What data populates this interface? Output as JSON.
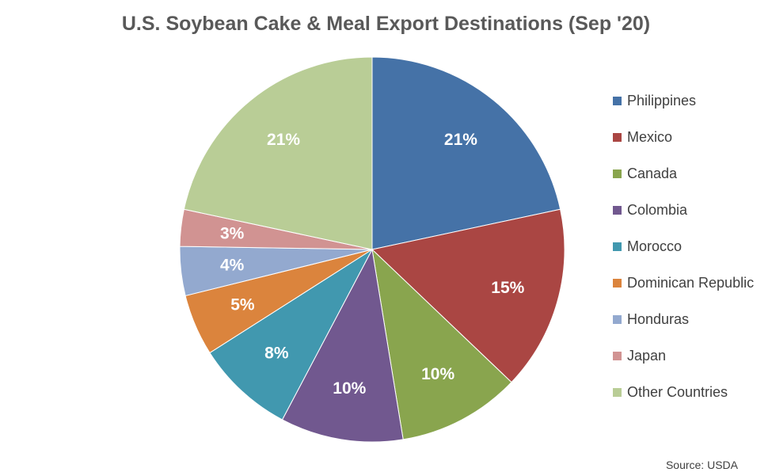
{
  "chart_data": {
    "type": "pie",
    "title": "U.S. Soybean Cake & Meal Export Destinations (Sep '20)",
    "legend_position": "right",
    "slices": [
      {
        "name": "Philippines",
        "value": 21,
        "label": "21%",
        "color": "#4572A7"
      },
      {
        "name": "Mexico",
        "value": 15,
        "label": "15%",
        "color": "#AA4643"
      },
      {
        "name": "Canada",
        "value": 10,
        "label": "10%",
        "color": "#89A54E"
      },
      {
        "name": "Colombia",
        "value": 10,
        "label": "10%",
        "color": "#71588F"
      },
      {
        "name": "Morocco",
        "value": 8,
        "label": "8%",
        "color": "#4198AF"
      },
      {
        "name": "Dominican Republic",
        "value": 5,
        "label": "5%",
        "color": "#DB843D"
      },
      {
        "name": "Honduras",
        "value": 4,
        "label": "4%",
        "color": "#93A9CF"
      },
      {
        "name": "Japan",
        "value": 3,
        "label": "3%",
        "color": "#D19392"
      },
      {
        "name": "Other Countries",
        "value": 21,
        "label": "21%",
        "color": "#B9CD96"
      }
    ]
  },
  "source": "Source: USDA"
}
